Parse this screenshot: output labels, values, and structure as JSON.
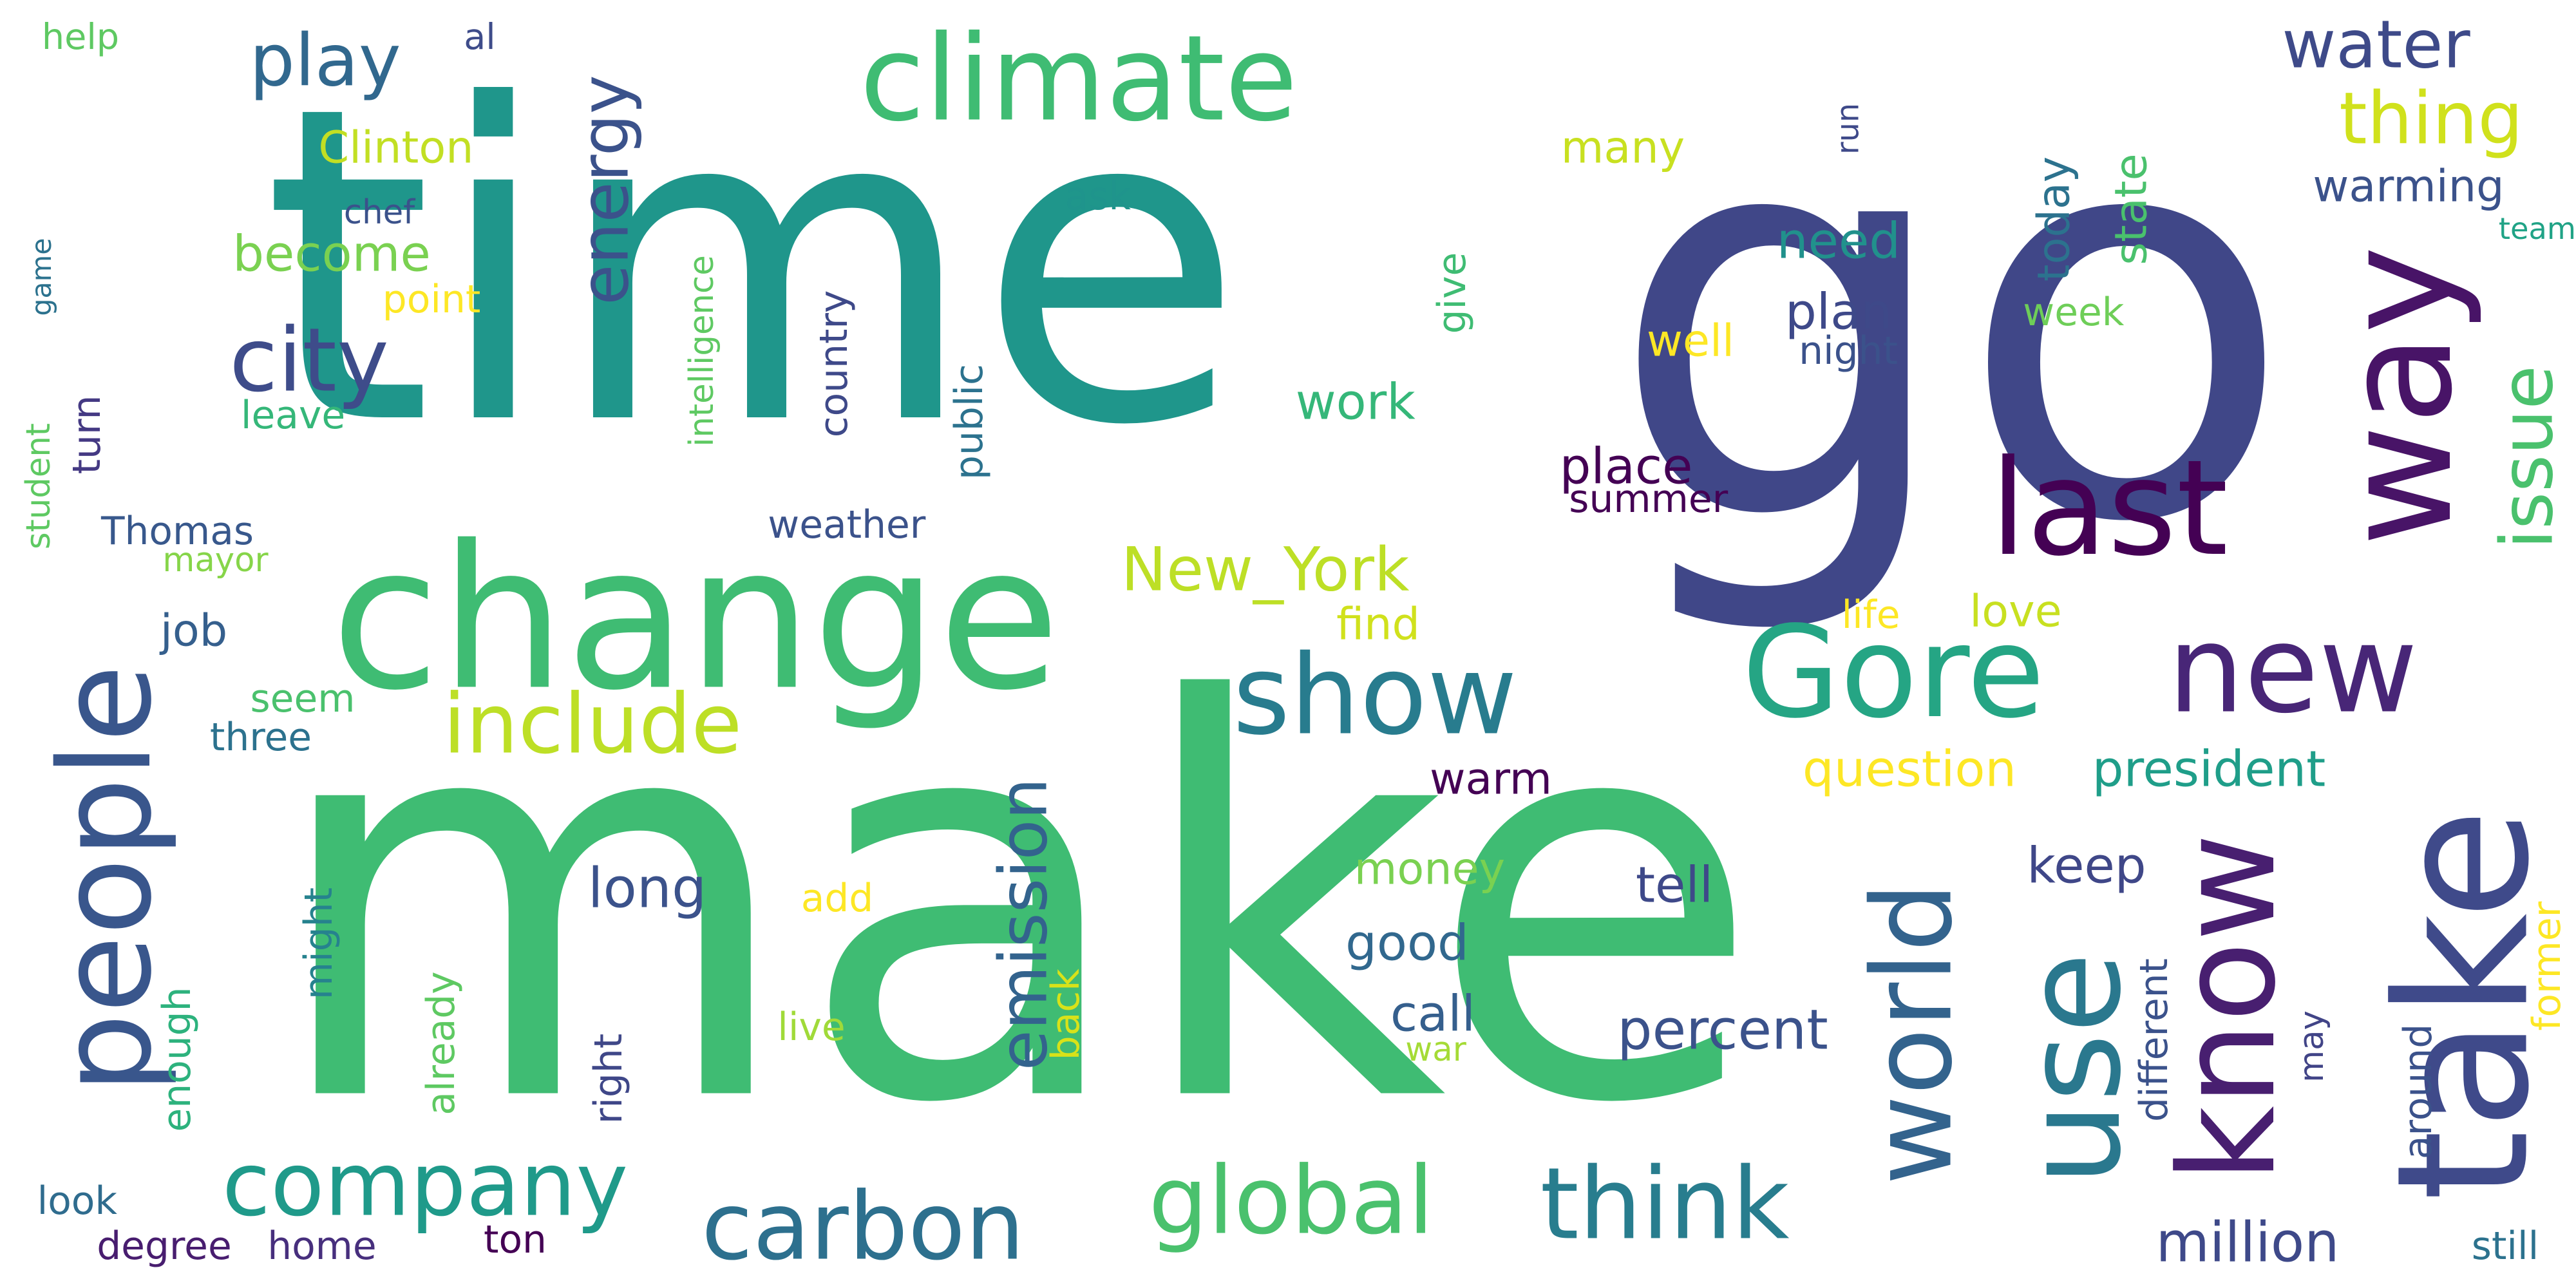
{
  "words": [
    {
      "text": "go",
      "color": "#404788"
    },
    {
      "text": "time",
      "color": "#1f968b"
    },
    {
      "text": "make",
      "color": "#3fbc73"
    },
    {
      "text": "change",
      "color": "#3fbc73"
    },
    {
      "text": "climate",
      "color": "#3fbc73"
    },
    {
      "text": "people",
      "color": "#39568c"
    },
    {
      "text": "new",
      "color": "#482677"
    },
    {
      "text": "take",
      "color": "#3f4a8a"
    },
    {
      "text": "show",
      "color": "#287c8e"
    },
    {
      "text": "last",
      "color": "#440154"
    },
    {
      "text": "way",
      "color": "#481467"
    },
    {
      "text": "Gore",
      "color": "#25a584"
    },
    {
      "text": "know",
      "color": "#481f70"
    },
    {
      "text": "use",
      "color": "#2a788e"
    },
    {
      "text": "world",
      "color": "#33638d"
    },
    {
      "text": "company",
      "color": "#1f9a8a"
    },
    {
      "text": "carbon",
      "color": "#2d708e"
    },
    {
      "text": "global",
      "color": "#4ac16d"
    },
    {
      "text": "think",
      "color": "#287d8e"
    },
    {
      "text": "include",
      "color": "#bddf26"
    },
    {
      "text": "emission",
      "color": "#33638d"
    },
    {
      "text": "energy",
      "color": "#3b528b"
    },
    {
      "text": "play",
      "color": "#31688e"
    },
    {
      "text": "city",
      "color": "#3e4c8a"
    },
    {
      "text": "water",
      "color": "#3e4a89"
    },
    {
      "text": "thing",
      "color": "#d0e11c"
    },
    {
      "text": "issue",
      "color": "#4ac16d"
    },
    {
      "text": "New_York",
      "color": "#bddf26"
    },
    {
      "text": "president",
      "color": "#1f9e89"
    },
    {
      "text": "become",
      "color": "#7ad151"
    },
    {
      "text": "Clinton",
      "color": "#c2df23"
    },
    {
      "text": "chef",
      "color": "#3b528b"
    },
    {
      "text": "point",
      "color": "#fde725"
    },
    {
      "text": "leave",
      "color": "#35b779"
    },
    {
      "text": "turn",
      "color": "#443983"
    },
    {
      "text": "student",
      "color": "#5ec962"
    },
    {
      "text": "game",
      "color": "#2c728e"
    },
    {
      "text": "help",
      "color": "#5ec962"
    },
    {
      "text": "al",
      "color": "#3e4c8a"
    },
    {
      "text": "Thomas",
      "color": "#38588c"
    },
    {
      "text": "mayor",
      "color": "#86d549"
    },
    {
      "text": "job",
      "color": "#355f8d"
    },
    {
      "text": "seem",
      "color": "#4ac16d"
    },
    {
      "text": "three",
      "color": "#2c728e"
    },
    {
      "text": "look",
      "color": "#2f6c8e"
    },
    {
      "text": "degree",
      "color": "#481d6f"
    },
    {
      "text": "home",
      "color": "#472f7d"
    },
    {
      "text": "enough",
      "color": "#2db27d"
    },
    {
      "text": "already",
      "color": "#5ec962"
    },
    {
      "text": "might",
      "color": "#26828e"
    },
    {
      "text": "right",
      "color": "#3f4788"
    },
    {
      "text": "ton",
      "color": "#440154"
    },
    {
      "text": "long",
      "color": "#3b528b"
    },
    {
      "text": "add",
      "color": "#fde725"
    },
    {
      "text": "live",
      "color": "#a0da39"
    },
    {
      "text": "back",
      "color": "#d8e219"
    },
    {
      "text": "find",
      "color": "#d0e11c"
    },
    {
      "text": "work",
      "color": "#35b779"
    },
    {
      "text": "public",
      "color": "#2c728e"
    },
    {
      "text": "country",
      "color": "#3e4989"
    },
    {
      "text": "intelligence",
      "color": "#5ec962"
    },
    {
      "text": "weather",
      "color": "#3b528b"
    },
    {
      "text": "ask",
      "color": "#1f948c"
    },
    {
      "text": "give",
      "color": "#3fbc73"
    },
    {
      "text": "many",
      "color": "#c8e020"
    },
    {
      "text": "run",
      "color": "#3e4989"
    },
    {
      "text": "well",
      "color": "#fde725"
    },
    {
      "text": "plan",
      "color": "#3e4989"
    },
    {
      "text": "need",
      "color": "#21918c"
    },
    {
      "text": "night",
      "color": "#3b528b"
    },
    {
      "text": "today",
      "color": "#2c728e"
    },
    {
      "text": "state",
      "color": "#4ac16d"
    },
    {
      "text": "week",
      "color": "#6ece58"
    },
    {
      "text": "warming",
      "color": "#3b528b"
    },
    {
      "text": "team",
      "color": "#20a386"
    },
    {
      "text": "place",
      "color": "#440154"
    },
    {
      "text": "summer",
      "color": "#440154"
    },
    {
      "text": "life",
      "color": "#fde725"
    },
    {
      "text": "love",
      "color": "#c8e020"
    },
    {
      "text": "question",
      "color": "#fde725"
    },
    {
      "text": "warm",
      "color": "#440154"
    },
    {
      "text": "money",
      "color": "#7ad151"
    },
    {
      "text": "tell",
      "color": "#3e4989"
    },
    {
      "text": "good",
      "color": "#31688e"
    },
    {
      "text": "call",
      "color": "#355f8d"
    },
    {
      "text": "war",
      "color": "#a5db36"
    },
    {
      "text": "percent",
      "color": "#3b528b"
    },
    {
      "text": "keep",
      "color": "#3f4788"
    },
    {
      "text": "different",
      "color": "#3b528b"
    },
    {
      "text": "may",
      "color": "#414487"
    },
    {
      "text": "million",
      "color": "#3e4989"
    },
    {
      "text": "around",
      "color": "#3b528b"
    },
    {
      "text": "former",
      "color": "#fde725"
    },
    {
      "text": "still",
      "color": "#2c728e"
    }
  ]
}
